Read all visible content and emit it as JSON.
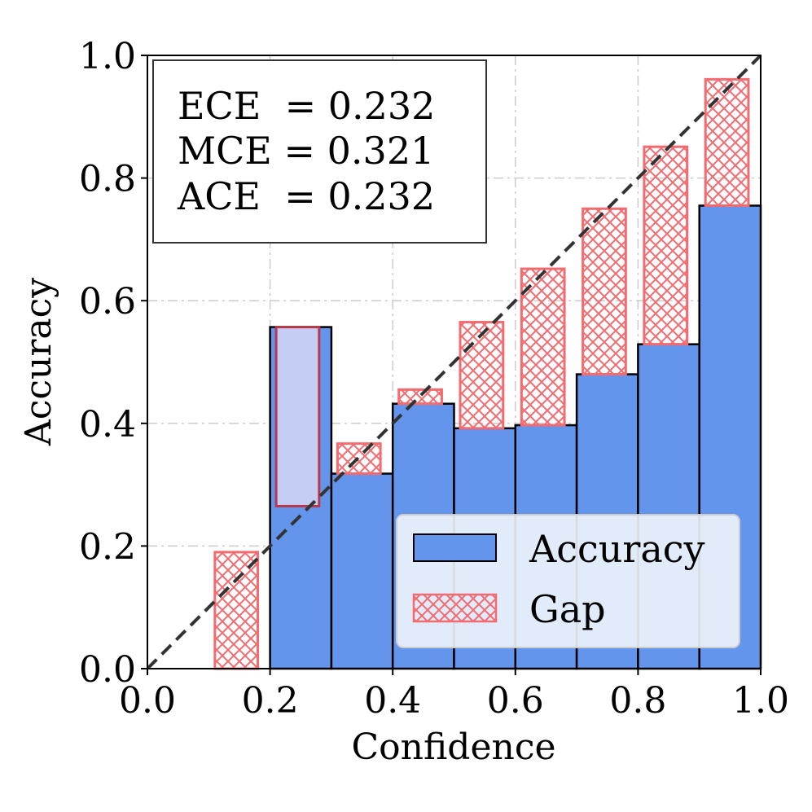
{
  "chart_data": {
    "type": "bar",
    "title": "",
    "xlabel": "Confidence",
    "ylabel": "Accuracy",
    "xlim": [
      0.0,
      1.0
    ],
    "ylim": [
      0.0,
      1.0
    ],
    "grid": true,
    "x_ticks": [
      "0.0",
      "0.2",
      "0.4",
      "0.6",
      "0.8",
      "1.0"
    ],
    "y_ticks": [
      "0.0",
      "0.2",
      "0.4",
      "0.6",
      "0.8",
      "1.0"
    ],
    "bins": [
      {
        "bin_start": 0.1,
        "bin_end": 0.2,
        "accuracy": 0.0,
        "confidence": 0.19
      },
      {
        "bin_start": 0.2,
        "bin_end": 0.3,
        "accuracy": 0.557,
        "confidence": 0.265
      },
      {
        "bin_start": 0.3,
        "bin_end": 0.4,
        "accuracy": 0.318,
        "confidence": 0.367
      },
      {
        "bin_start": 0.4,
        "bin_end": 0.5,
        "accuracy": 0.432,
        "confidence": 0.455
      },
      {
        "bin_start": 0.5,
        "bin_end": 0.6,
        "accuracy": 0.392,
        "confidence": 0.565
      },
      {
        "bin_start": 0.6,
        "bin_end": 0.7,
        "accuracy": 0.397,
        "confidence": 0.652
      },
      {
        "bin_start": 0.7,
        "bin_end": 0.8,
        "accuracy": 0.48,
        "confidence": 0.75
      },
      {
        "bin_start": 0.8,
        "bin_end": 0.9,
        "accuracy": 0.529,
        "confidence": 0.851
      },
      {
        "bin_start": 0.9,
        "bin_end": 1.0,
        "accuracy": 0.755,
        "confidence": 0.961
      }
    ],
    "reference_line": {
      "from": [
        0,
        0
      ],
      "to": [
        1,
        1
      ],
      "style": "dashed"
    },
    "metrics": [
      "ECE  = 0.232",
      "MCE = 0.321",
      "ACE  = 0.232"
    ],
    "legend": {
      "position": "lower-right",
      "entries": [
        "Accuracy",
        "Gap"
      ]
    },
    "colors": {
      "accuracy_fill": "#6495ED",
      "gap_edge": "#F46A6F",
      "gap_overlap_fill": "#C5CDF4",
      "gap_overlap_edge": "#B8394A",
      "diagonal": "#333333",
      "grid": "#CCCCCC"
    }
  }
}
